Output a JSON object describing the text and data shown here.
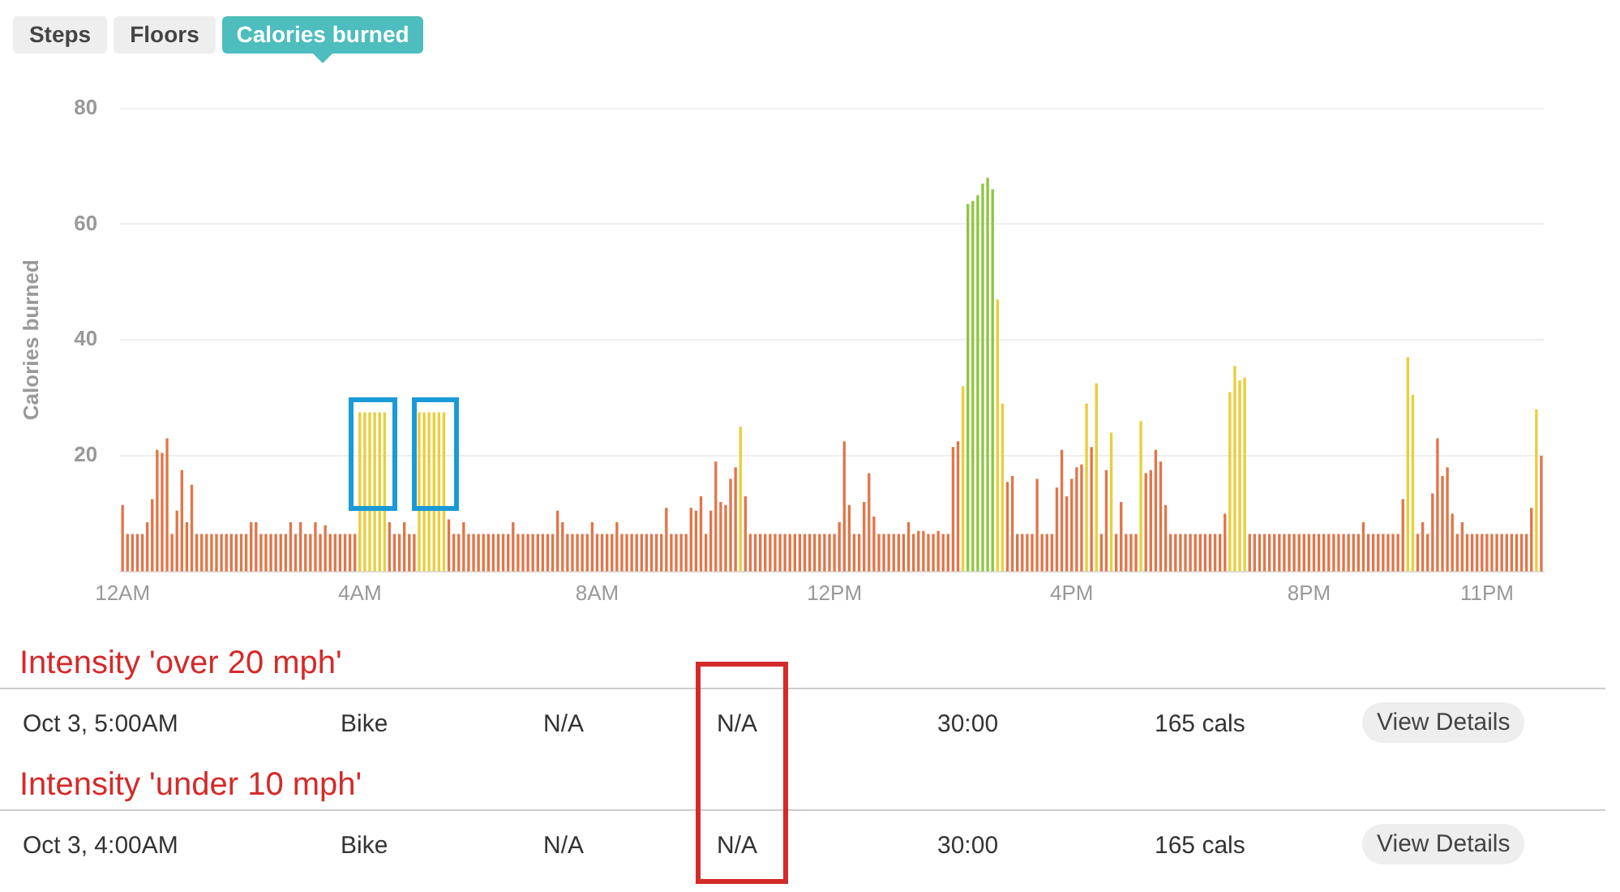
{
  "chart_data": {
    "type": "bar",
    "ylabel": "Calories burned",
    "categories": [
      "12AM",
      null,
      null,
      null,
      null,
      null,
      null,
      null,
      null,
      null,
      null,
      null,
      null,
      null,
      null,
      null,
      null,
      null,
      null,
      null,
      null,
      null,
      null,
      null,
      null,
      null,
      null,
      null,
      null,
      null,
      null,
      null,
      null,
      null,
      null,
      null,
      null,
      null,
      null,
      null,
      null,
      null,
      null,
      null,
      null,
      null,
      null,
      null,
      "4AM",
      null,
      null,
      null,
      null,
      null,
      null,
      null,
      null,
      null,
      null,
      null,
      null,
      null,
      null,
      null,
      null,
      null,
      null,
      null,
      null,
      null,
      null,
      null,
      null,
      null,
      null,
      null,
      null,
      null,
      null,
      null,
      null,
      null,
      null,
      null,
      null,
      null,
      null,
      null,
      null,
      null,
      null,
      null,
      null,
      null,
      null,
      null,
      "8AM",
      null,
      null,
      null,
      null,
      null,
      null,
      null,
      null,
      null,
      null,
      null,
      null,
      null,
      null,
      null,
      null,
      null,
      null,
      null,
      null,
      null,
      null,
      null,
      null,
      null,
      null,
      null,
      null,
      null,
      null,
      null,
      null,
      null,
      null,
      null,
      null,
      null,
      null,
      null,
      null,
      null,
      null,
      null,
      null,
      null,
      null,
      null,
      "12PM",
      null,
      null,
      null,
      null,
      null,
      null,
      null,
      null,
      null,
      null,
      null,
      null,
      null,
      null,
      null,
      null,
      null,
      null,
      null,
      null,
      null,
      null,
      null,
      null,
      null,
      null,
      null,
      null,
      null,
      null,
      null,
      null,
      null,
      null,
      null,
      null,
      null,
      null,
      null,
      null,
      null,
      null,
      null,
      null,
      null,
      null,
      null,
      "4PM",
      null,
      null,
      null,
      null,
      null,
      null,
      null,
      null,
      null,
      null,
      null,
      null,
      null,
      null,
      null,
      null,
      null,
      null,
      null,
      null,
      null,
      null,
      null,
      null,
      null,
      null,
      null,
      null,
      null,
      null,
      null,
      null,
      null,
      null,
      null,
      null,
      null,
      null,
      null,
      null,
      null,
      null,
      null,
      null,
      null,
      null,
      null,
      "8PM",
      null,
      null,
      null,
      null,
      null,
      null,
      null,
      null,
      null,
      null,
      null,
      null,
      null,
      null,
      null,
      null,
      null,
      null,
      null,
      null,
      null,
      null,
      null,
      null,
      null,
      null,
      null,
      null,
      null,
      null,
      null,
      null,
      null,
      null,
      null,
      "11PM",
      null,
      null,
      null,
      null,
      null,
      null,
      null,
      null,
      null,
      null,
      null
    ],
    "values": [
      11.5,
      6.5,
      6.5,
      6.5,
      6.5,
      8.5,
      12.5,
      21,
      20.5,
      23,
      6.5,
      10.5,
      17.5,
      8.5,
      15,
      6.5,
      6.5,
      6.5,
      6.5,
      6.5,
      6.5,
      6.5,
      6.5,
      6.5,
      6.5,
      6.5,
      8.5,
      8.5,
      6.5,
      6.5,
      6.5,
      6.5,
      6.5,
      6.5,
      8.5,
      6.5,
      8.5,
      6.5,
      6.5,
      8.5,
      6.5,
      8,
      6.5,
      6.5,
      6.5,
      6.5,
      6.5,
      6.5,
      27.5,
      27.5,
      27.5,
      27.5,
      27.5,
      27.5,
      8.5,
      6.5,
      6.5,
      8.5,
      6.5,
      6.5,
      27.5,
      27.5,
      27.5,
      27.5,
      27.5,
      27.5,
      9,
      6.5,
      6.5,
      8.5,
      6.5,
      6.5,
      6.5,
      6.5,
      6.5,
      6.5,
      6.5,
      6.5,
      6.5,
      8.5,
      6.5,
      6.5,
      6.5,
      6.5,
      6.5,
      6.5,
      6.5,
      6.5,
      10.5,
      8.5,
      6.5,
      6.5,
      6.5,
      6.5,
      6.5,
      8.5,
      6.5,
      6.5,
      6.5,
      6.5,
      8.5,
      6.5,
      6.5,
      6.5,
      6.5,
      6.5,
      6.5,
      6.5,
      6.5,
      6.5,
      11,
      6.5,
      6.5,
      6.5,
      6.5,
      11,
      10.5,
      13,
      6.5,
      10.5,
      19,
      12,
      11.5,
      16,
      18,
      25,
      13,
      6.5,
      6.5,
      6.5,
      6.5,
      6.5,
      6.5,
      6.5,
      6.5,
      6.5,
      6.5,
      6.5,
      6.5,
      6.5,
      6.5,
      6.5,
      6.5,
      6.5,
      6.5,
      8.5,
      22.5,
      11.5,
      6.5,
      6.5,
      12,
      17,
      9.5,
      6.5,
      6.5,
      6.5,
      6.5,
      6.5,
      6.5,
      8.5,
      6.5,
      7,
      7,
      6.5,
      6.5,
      7,
      6.5,
      6.5,
      21.5,
      22.5,
      32,
      63.5,
      64,
      65,
      67,
      68,
      66,
      47,
      29,
      15.5,
      16.5,
      6.5,
      6.5,
      6.5,
      6.5,
      16,
      6.5,
      6.5,
      6.5,
      14.5,
      21,
      13,
      16,
      18,
      18.5,
      29,
      21.5,
      32.5,
      6.5,
      17.5,
      24,
      6.5,
      12,
      6.5,
      6.5,
      6.5,
      26,
      17,
      17.5,
      21,
      19,
      11.5,
      6.5,
      6.5,
      6.5,
      6.5,
      6.5,
      6.5,
      6.5,
      6.5,
      6.5,
      6.5,
      6.5,
      10,
      31,
      35.5,
      33,
      33.5,
      6.5,
      6.5,
      6.5,
      6.5,
      6.5,
      6.5,
      6.5,
      6.5,
      6.5,
      6.5,
      6.5,
      6.5,
      6.5,
      6.5,
      6.5,
      6.5,
      6.5,
      6.5,
      6.5,
      6.5,
      6.5,
      6.5,
      6.5,
      8.5,
      6.5,
      6.5,
      6.5,
      6.5,
      6.5,
      6.5,
      6.5,
      12.5,
      37,
      30.5,
      6.5,
      8.5,
      6.5,
      13.5,
      23,
      16.5,
      18,
      10,
      6.5,
      8.5,
      6.5,
      6.5,
      6.5,
      6.5,
      6.5,
      6.5,
      6.5,
      6.5,
      6.5,
      6.5,
      6.5,
      6.5,
      6.5,
      11,
      28,
      20
    ],
    "colors": [
      "#e0764a",
      "#e0764a",
      "#e0764a",
      "#e0764a",
      "#e0764a",
      "#e0764a",
      "#e0764a",
      "#e0764a",
      "#e0764a",
      "#e0764a",
      "#e0764a",
      "#e0764a",
      "#e0764a",
      "#e0764a",
      "#e0764a",
      "#e0764a",
      "#e0764a",
      "#e0764a",
      "#e0764a",
      "#e0764a",
      "#e0764a",
      "#e0764a",
      "#e0764a",
      "#e0764a",
      "#e0764a",
      "#e0764a",
      "#e0764a",
      "#e0764a",
      "#e0764a",
      "#e0764a",
      "#e0764a",
      "#e0764a",
      "#e0764a",
      "#e0764a",
      "#e0764a",
      "#e0764a",
      "#e0764a",
      "#e0764a",
      "#e0764a",
      "#e0764a",
      "#e0764a",
      "#e0764a",
      "#e0764a",
      "#e0764a",
      "#e0764a",
      "#e0764a",
      "#e0764a",
      "#e0764a",
      "#e8cf3a",
      "#e8cf3a",
      "#e8cf3a",
      "#e8cf3a",
      "#e8cf3a",
      "#e8cf3a",
      "#e0764a",
      "#e0764a",
      "#e0764a",
      "#e0764a",
      "#e0764a",
      "#e0764a",
      "#e8cf3a",
      "#e8cf3a",
      "#e8cf3a",
      "#e8cf3a",
      "#e8cf3a",
      "#e8cf3a",
      "#e0764a",
      "#e0764a",
      "#e0764a",
      "#e0764a",
      "#e0764a",
      "#e0764a",
      "#e0764a",
      "#e0764a",
      "#e0764a",
      "#e0764a",
      "#e0764a",
      "#e0764a",
      "#e0764a",
      "#e0764a",
      "#e0764a",
      "#e0764a",
      "#e0764a",
      "#e0764a",
      "#e0764a",
      "#e0764a",
      "#e0764a",
      "#e0764a",
      "#e0764a",
      "#e0764a",
      "#e0764a",
      "#e0764a",
      "#e0764a",
      "#e0764a",
      "#e0764a",
      "#e0764a",
      "#e0764a",
      "#e0764a",
      "#e0764a",
      "#e0764a",
      "#e0764a",
      "#e0764a",
      "#e0764a",
      "#e0764a",
      "#e0764a",
      "#e0764a",
      "#e0764a",
      "#e0764a",
      "#e0764a",
      "#e0764a",
      "#e0764a",
      "#e0764a",
      "#e0764a",
      "#e0764a",
      "#e0764a",
      "#e0764a",
      "#e0764a",
      "#e0764a",
      "#e0764a",
      "#e0764a",
      "#e0764a",
      "#e0764a",
      "#e0764a",
      "#e0764a",
      "#e0764a",
      "#e8cf3a",
      "#e0764a",
      "#e0764a",
      "#e0764a",
      "#e0764a",
      "#e0764a",
      "#e0764a",
      "#e0764a",
      "#e0764a",
      "#e0764a",
      "#e0764a",
      "#e0764a",
      "#e0764a",
      "#e0764a",
      "#e0764a",
      "#e0764a",
      "#e0764a",
      "#e0764a",
      "#e0764a",
      "#e0764a",
      "#e0764a",
      "#e0764a",
      "#e0764a",
      "#e0764a",
      "#e0764a",
      "#e0764a",
      "#e0764a",
      "#e0764a",
      "#e0764a",
      "#e0764a",
      "#e0764a",
      "#e0764a",
      "#e0764a",
      "#e0764a",
      "#e0764a",
      "#e0764a",
      "#e0764a",
      "#e0764a",
      "#e0764a",
      "#e0764a",
      "#e0764a",
      "#e0764a",
      "#e0764a",
      "#e0764a",
      "#e0764a",
      "#e8cf3a",
      "#8dc63f",
      "#8dc63f",
      "#8dc63f",
      "#8dc63f",
      "#8dc63f",
      "#8dc63f",
      "#e8cf3a",
      "#e8cf3a",
      "#e0764a",
      "#e0764a",
      "#e0764a",
      "#e0764a",
      "#e0764a",
      "#e0764a",
      "#e0764a",
      "#e0764a",
      "#e0764a",
      "#e0764a",
      "#e0764a",
      "#e0764a",
      "#e0764a",
      "#e0764a",
      "#e0764a",
      "#e0764a",
      "#e8cf3a",
      "#e0764a",
      "#e8cf3a",
      "#e0764a",
      "#e0764a",
      "#e8cf3a",
      "#e0764a",
      "#e0764a",
      "#e0764a",
      "#e0764a",
      "#e0764a",
      "#e8cf3a",
      "#e0764a",
      "#e0764a",
      "#e0764a",
      "#e0764a",
      "#e0764a",
      "#e0764a",
      "#e0764a",
      "#e0764a",
      "#e0764a",
      "#e0764a",
      "#e0764a",
      "#e0764a",
      "#e0764a",
      "#e0764a",
      "#e0764a",
      "#e0764a",
      "#e0764a",
      "#e8cf3a",
      "#e8cf3a",
      "#e8cf3a",
      "#e8cf3a",
      "#e0764a",
      "#e0764a",
      "#e0764a",
      "#e0764a",
      "#e0764a",
      "#e0764a",
      "#e0764a",
      "#e0764a",
      "#e0764a",
      "#e0764a",
      "#e0764a",
      "#e0764a",
      "#e0764a",
      "#e0764a",
      "#e0764a",
      "#e0764a",
      "#e0764a",
      "#e0764a",
      "#e0764a",
      "#e0764a",
      "#e0764a",
      "#e0764a",
      "#e0764a",
      "#e0764a",
      "#e0764a",
      "#e0764a",
      "#e0764a",
      "#e0764a",
      "#e0764a",
      "#e0764a",
      "#e0764a",
      "#e0764a",
      "#e8cf3a",
      "#e8cf3a",
      "#e0764a",
      "#e0764a",
      "#e0764a",
      "#e0764a",
      "#e0764a",
      "#e0764a",
      "#e0764a",
      "#e0764a",
      "#e0764a",
      "#e0764a",
      "#e0764a",
      "#e0764a",
      "#e0764a",
      "#e0764a",
      "#e0764a",
      "#e0764a",
      "#e0764a",
      "#e0764a",
      "#e0764a",
      "#e0764a",
      "#e0764a",
      "#e0764a",
      "#e0764a",
      "#e0764a",
      "#e8cf3a",
      "#e0764a"
    ],
    "ylim": [
      0,
      80
    ],
    "yticks": [
      20,
      40,
      60,
      80
    ],
    "grid": "y",
    "annotations": [
      "Steps",
      "Floors",
      "Calories burned",
      "Intensity 'over 20 mph'",
      "Oct 3, 5:00AM",
      "Bike",
      "N/A",
      "N/A",
      "30:00",
      "165 cals",
      "View Details",
      "Intensity 'under 10 mph'",
      "Oct 3, 4:00AM",
      "Bike",
      "N/A",
      "N/A",
      "30:00",
      "165 cals",
      "View Details"
    ]
  }
}
